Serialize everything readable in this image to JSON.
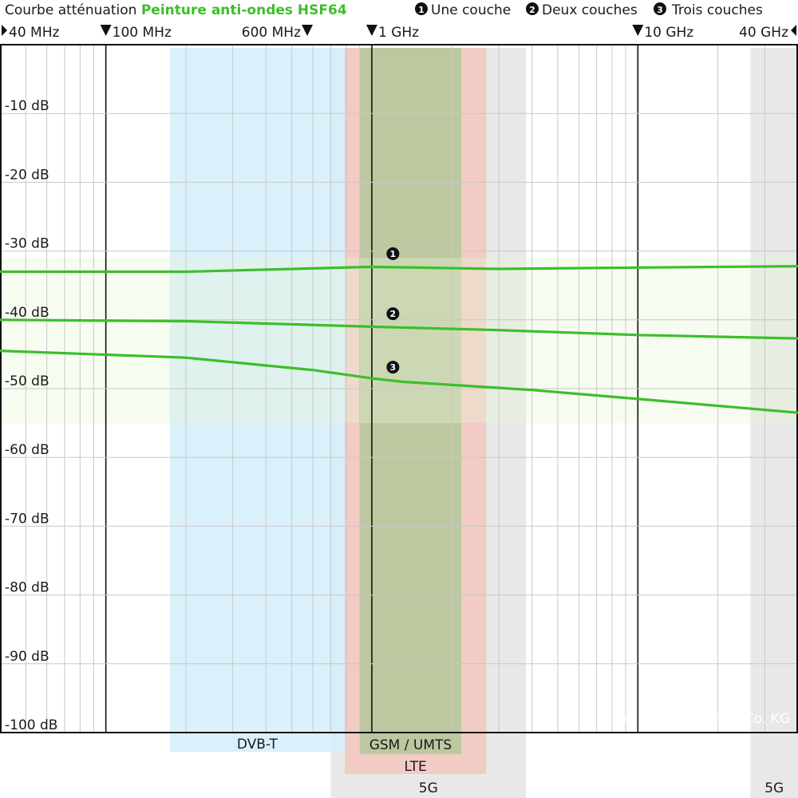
{
  "title": {
    "prefix": "Courbe atténuation ",
    "product": "Peinture anti-ondes HSF64"
  },
  "legend": [
    {
      "marker": "1",
      "label": "Une couche"
    },
    {
      "marker": "2",
      "label": "Deux couches"
    },
    {
      "marker": "3",
      "label": "Trois couches"
    }
  ],
  "copyright": "© YSHIELD GmbH & Co. KG",
  "colors": {
    "curve": "#3cbf2a",
    "dvbt": "#d6eefb",
    "gsm": "#b5c89a",
    "lte": "#f2c8c0",
    "fiveg": "#e6e6e6"
  },
  "chart_data": {
    "type": "line",
    "title": "Courbe atténuation Peinture anti-ondes HSF64",
    "x_scale": "log",
    "xlim_mhz": [
      40,
      40000
    ],
    "ylim_db": [
      0,
      -100
    ],
    "y_ticks": [
      {
        "value": -10,
        "label": "-10 dB"
      },
      {
        "value": -20,
        "label": "-20 dB"
      },
      {
        "value": -30,
        "label": "-30 dB"
      },
      {
        "value": -40,
        "label": "-40 dB"
      },
      {
        "value": -50,
        "label": "-50 dB"
      },
      {
        "value": -60,
        "label": "-60 dB"
      },
      {
        "value": -70,
        "label": "-70 dB"
      },
      {
        "value": -80,
        "label": "-80 dB"
      },
      {
        "value": -90,
        "label": "-90 dB"
      },
      {
        "value": -100,
        "label": "-100 dB"
      }
    ],
    "x_ticks": [
      {
        "mhz": 40,
        "label": "40 MHz",
        "marker": "right",
        "anchor": "start"
      },
      {
        "mhz": 100,
        "label": "100 MHz",
        "marker": "down",
        "anchor": "start"
      },
      {
        "mhz": 600,
        "label": "600 MHz",
        "marker": "down",
        "anchor": "end"
      },
      {
        "mhz": 1000,
        "label": "1 GHz",
        "marker": "down",
        "anchor": "start"
      },
      {
        "mhz": 10000,
        "label": "10 GHz",
        "marker": "down",
        "anchor": "start"
      },
      {
        "mhz": 40000,
        "label": "40 GHz",
        "marker": "left",
        "anchor": "end"
      }
    ],
    "major_lines_mhz": [
      100,
      1000,
      10000
    ],
    "bands": [
      {
        "label": "DVB-T",
        "from_mhz": 174,
        "to_mhz": 790,
        "color": "#d6eefb"
      },
      {
        "label": "GSM / UMTS",
        "from_mhz": 900,
        "to_mhz": 2170,
        "color": "#b5c89a"
      },
      {
        "label": "LTE",
        "from_mhz": 791,
        "to_mhz": 2690,
        "color": "#f2c8c0"
      },
      {
        "label": "5G",
        "from_mhz": 700,
        "to_mhz": 3800,
        "color": "#e6e6e6"
      },
      {
        "label": "5G",
        "from_mhz": 26500,
        "to_mhz": 40000,
        "color": "#e6e6e6"
      }
    ],
    "series": [
      {
        "name": "Une couche",
        "marker": "1",
        "points": [
          [
            40,
            -33
          ],
          [
            200,
            -33
          ],
          [
            1000,
            -32.3
          ],
          [
            3000,
            -32.6
          ],
          [
            10000,
            -32.4
          ],
          [
            40000,
            -32.2
          ]
        ]
      },
      {
        "name": "Deux couches",
        "marker": "2",
        "points": [
          [
            40,
            -40
          ],
          [
            200,
            -40.2
          ],
          [
            1000,
            -41
          ],
          [
            3000,
            -41.5
          ],
          [
            10000,
            -42.2
          ],
          [
            40000,
            -42.7
          ]
        ]
      },
      {
        "name": "Trois couches",
        "marker": "3",
        "points": [
          [
            40,
            -44.5
          ],
          [
            200,
            -45.5
          ],
          [
            600,
            -47.3
          ],
          [
            1000,
            -48.5
          ],
          [
            1300,
            -49
          ],
          [
            4000,
            -50.2
          ],
          [
            10000,
            -51.5
          ],
          [
            40000,
            -53.5
          ]
        ]
      }
    ]
  }
}
